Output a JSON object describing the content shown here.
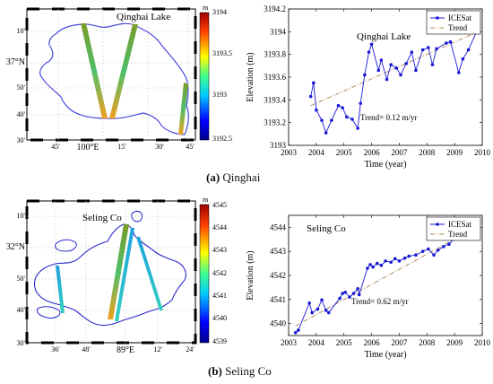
{
  "panels": [
    {
      "caption_letter": "(a)",
      "caption_name": "Qinghai",
      "map": {
        "title": "Qinghai Lake",
        "colorbar_unit": "m",
        "colorbar_ticks": [
          "3194",
          "3193.5",
          "3193",
          "3192.5"
        ],
        "lat_labels": [
          "10'",
          "37°N",
          "50'",
          "40'",
          "30'"
        ],
        "lon_labels": [
          "45'",
          "100°E",
          "15'",
          "30'",
          "45'"
        ]
      },
      "chart_data": {
        "type": "line",
        "title": "Qinghai Lake",
        "xlabel": "Time (year)",
        "ylabel": "Elevation (m)",
        "xlim": [
          2003,
          2010
        ],
        "ylim": [
          3193,
          3194.2
        ],
        "xticks": [
          2003,
          2004,
          2005,
          2006,
          2007,
          2008,
          2009,
          2010
        ],
        "yticks": [
          3193,
          3193.2,
          3193.4,
          3193.6,
          3193.8,
          3194,
          3194.2
        ],
        "legend": "top-right",
        "annotation": "Trend=  0.12 m/yr",
        "series": [
          {
            "name": "ICESat",
            "color": "#1a1ad6",
            "x": [
              2003.8,
              2003.9,
              2004.0,
              2004.2,
              2004.35,
              2004.55,
              2004.8,
              2004.95,
              2005.1,
              2005.3,
              2005.5,
              2005.6,
              2005.75,
              2005.9,
              2006.0,
              2006.25,
              2006.35,
              2006.55,
              2006.7,
              2006.9,
              2007.05,
              2007.25,
              2007.45,
              2007.6,
              2007.85,
              2008.05,
              2008.2,
              2008.35,
              2008.7,
              2008.85,
              2009.15,
              2009.3,
              2009.5,
              2009.85
            ],
            "values": [
              3193.43,
              3193.55,
              3193.31,
              3193.22,
              3193.11,
              3193.22,
              3193.35,
              3193.33,
              3193.25,
              3193.23,
              3193.15,
              3193.37,
              3193.62,
              3193.82,
              3193.89,
              3193.66,
              3193.75,
              3193.58,
              3193.71,
              3193.68,
              3193.62,
              3193.72,
              3193.82,
              3193.66,
              3193.84,
              3193.86,
              3193.71,
              3193.85,
              3193.9,
              3193.91,
              3193.64,
              3193.76,
              3193.84,
              3194.03
            ]
          },
          {
            "name": "Trend",
            "color": "#b08a5a",
            "x": [
              2003.8,
              2009.85
            ],
            "values": [
              3193.35,
              3194.0
            ]
          }
        ]
      }
    },
    {
      "caption_letter": "(b)",
      "caption_name": "Seling Co",
      "map": {
        "title": "Seling Co",
        "colorbar_unit": "m",
        "colorbar_ticks": [
          "4545",
          "4544",
          "4543",
          "4542",
          "4541",
          "4540",
          "4539"
        ],
        "lat_labels": [
          "10'",
          "32°N",
          "50'",
          "40'",
          "30'"
        ],
        "lon_labels": [
          "36'",
          "48'",
          "89°E",
          "12'",
          "24'"
        ]
      },
      "chart_data": {
        "type": "line",
        "title": "Seling Co",
        "xlabel": "Time (year)",
        "ylabel": "Elevation (m)",
        "xlim": [
          2003,
          2010
        ],
        "ylim": [
          4539.5,
          4544.5
        ],
        "xticks": [
          2003,
          2004,
          2005,
          2006,
          2007,
          2008,
          2009,
          2010
        ],
        "yticks": [
          4540,
          4541,
          4542,
          4543,
          4544
        ],
        "legend": "top-right",
        "annotation": "Trend=  0.62 m/yr",
        "series": [
          {
            "name": "ICESat",
            "color": "#1a1ad6",
            "x": [
              2003.25,
              2003.35,
              2003.75,
              2003.85,
              2004.05,
              2004.2,
              2004.35,
              2004.45,
              2004.85,
              2004.95,
              2005.05,
              2005.2,
              2005.35,
              2005.5,
              2005.55,
              2005.85,
              2005.95,
              2006.05,
              2006.2,
              2006.35,
              2006.5,
              2006.7,
              2006.85,
              2007.0,
              2007.2,
              2007.35,
              2007.6,
              2007.85,
              2008.05,
              2008.25,
              2008.4,
              2008.6,
              2008.8,
              2008.95,
              2009.1,
              2009.3
            ],
            "values": [
              4539.62,
              4539.72,
              4540.85,
              4540.45,
              4540.6,
              4540.98,
              4540.55,
              4540.45,
              4541.05,
              4541.25,
              4541.3,
              4541.1,
              4541.25,
              4541.45,
              4541.2,
              4542.3,
              4542.45,
              4542.35,
              4542.5,
              4542.42,
              4542.6,
              4542.55,
              4542.7,
              4542.6,
              4542.72,
              4542.8,
              4542.85,
              4543.0,
              4543.1,
              4542.85,
              4543.05,
              4543.2,
              4543.3,
              4543.5,
              4543.7,
              4543.55
            ]
          },
          {
            "name": "Trend",
            "color": "#b08a5a",
            "x": [
              2003.25,
              2009.3
            ],
            "values": [
              4539.9,
              4543.7
            ]
          }
        ]
      }
    }
  ]
}
